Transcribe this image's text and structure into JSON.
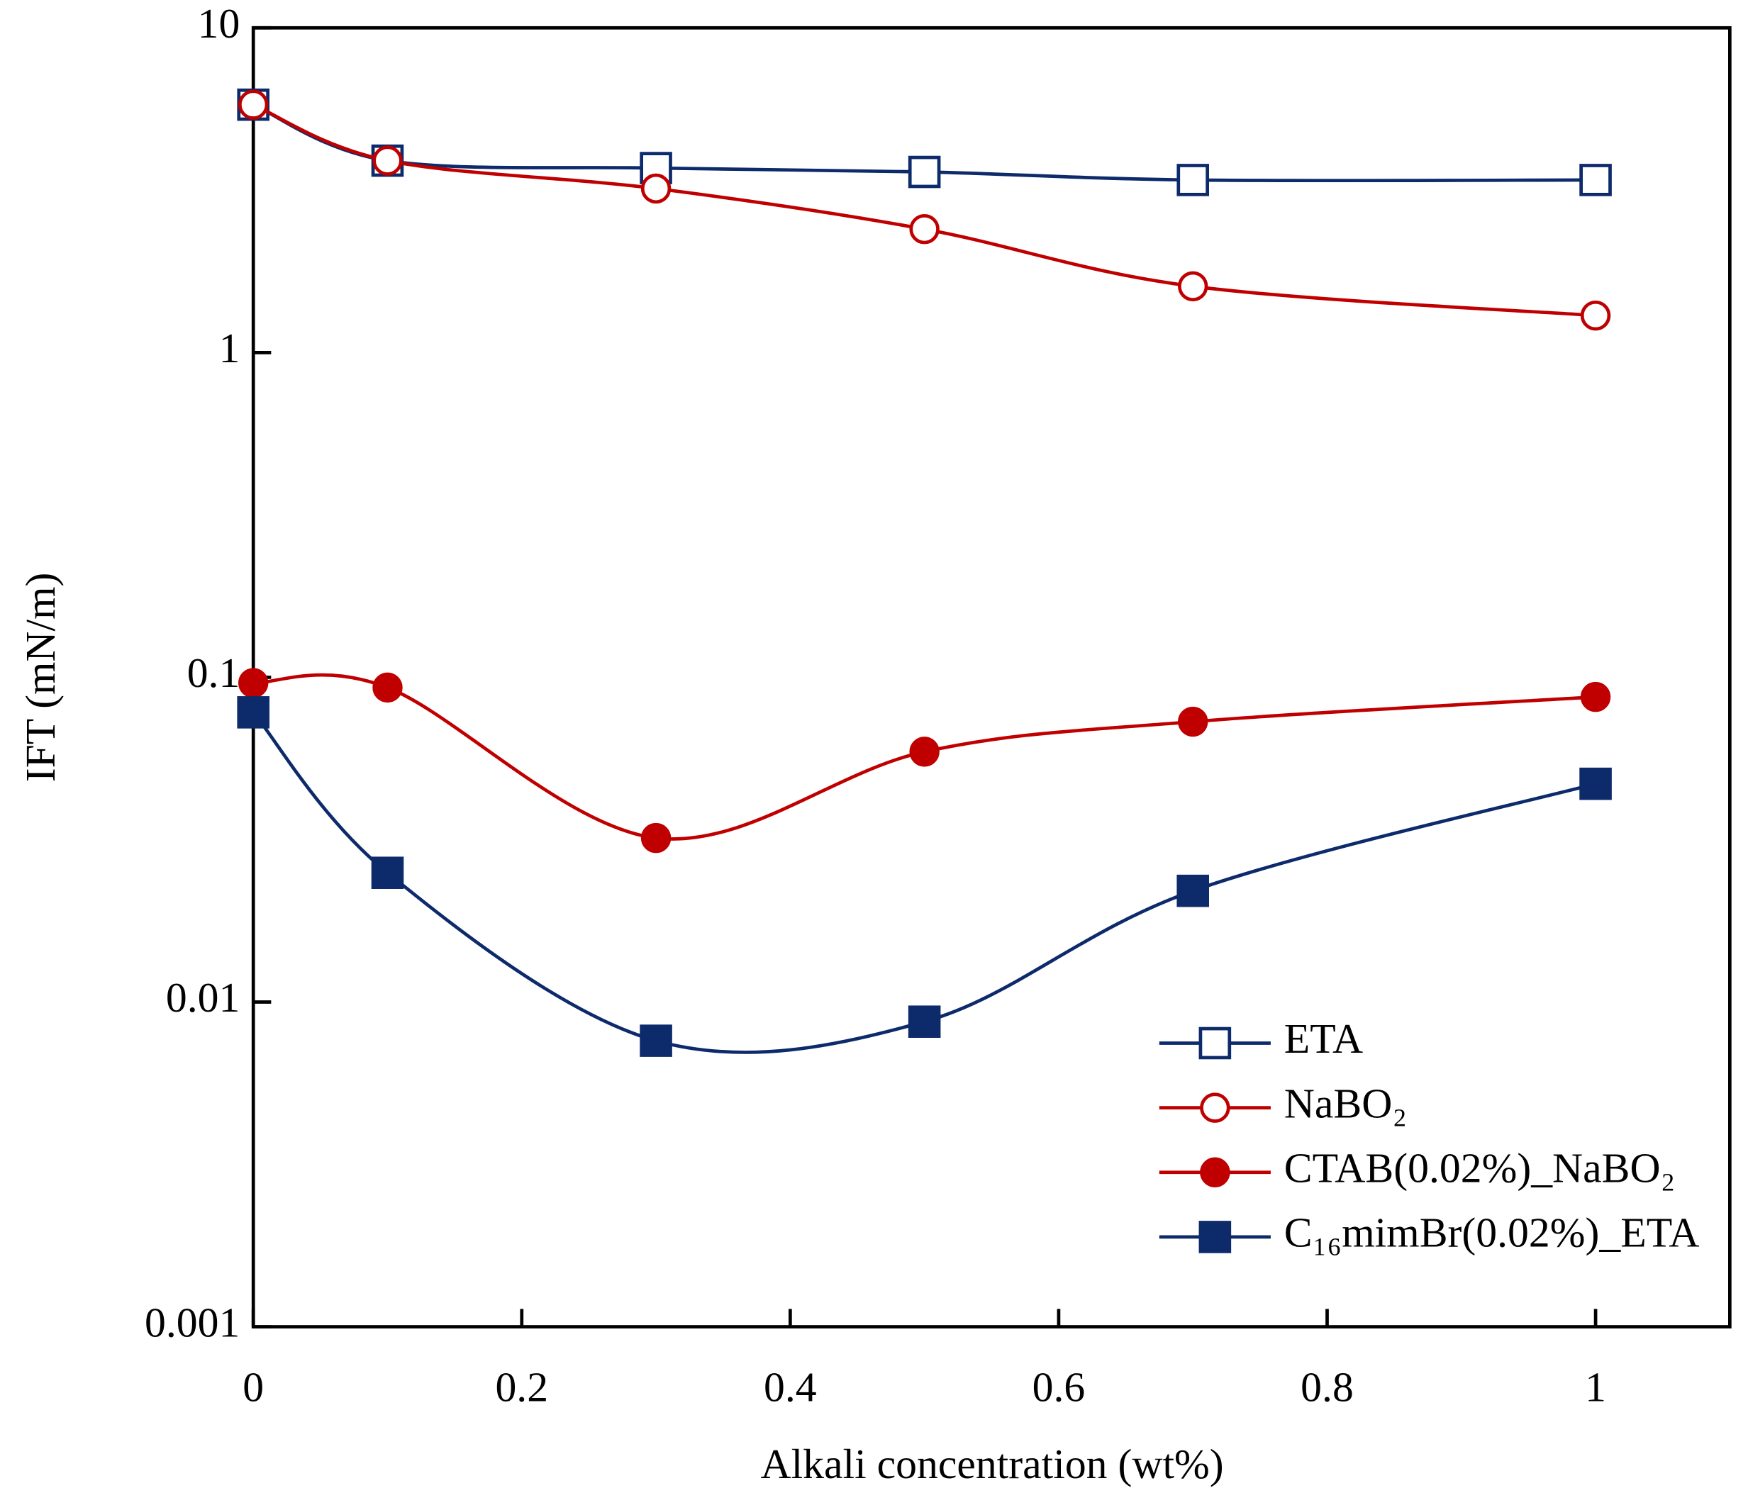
{
  "chart_data": {
    "type": "line",
    "x_label": "Alkali concentration (wt%)",
    "y_label": "IFT (mN/m)",
    "x": [
      0,
      0.1,
      0.3,
      0.5,
      0.7,
      1
    ],
    "xlim": [
      0,
      1.1
    ],
    "xticks": [
      0,
      0.2,
      0.4,
      0.6,
      0.8,
      1
    ],
    "ylim": [
      0.001,
      10
    ],
    "yticks": [
      0.001,
      0.01,
      0.1,
      1,
      10
    ],
    "y_scale": "log",
    "legend_position": "lower right",
    "series": [
      {
        "name": "ETA",
        "color": "#0d2a6b",
        "marker": "square",
        "filled": false,
        "values": [
          5.8,
          3.9,
          3.7,
          3.6,
          3.4,
          3.4
        ]
      },
      {
        "name": "NaBO₂",
        "color": "#c00000",
        "marker": "circle",
        "filled": false,
        "values": [
          5.8,
          3.9,
          3.2,
          2.4,
          1.6,
          1.3
        ]
      },
      {
        "name": "CTAB(0.02%)_NaBO₂",
        "color": "#c00000",
        "marker": "circle",
        "filled": true,
        "values": [
          0.096,
          0.093,
          0.032,
          0.059,
          0.073,
          0.087
        ]
      },
      {
        "name": "C₁₆mimBr(0.02%)_ETA",
        "color": "#0d2a6b",
        "marker": "square",
        "filled": true,
        "values": [
          0.078,
          0.025,
          0.0076,
          0.0087,
          0.022,
          0.047
        ]
      }
    ]
  }
}
